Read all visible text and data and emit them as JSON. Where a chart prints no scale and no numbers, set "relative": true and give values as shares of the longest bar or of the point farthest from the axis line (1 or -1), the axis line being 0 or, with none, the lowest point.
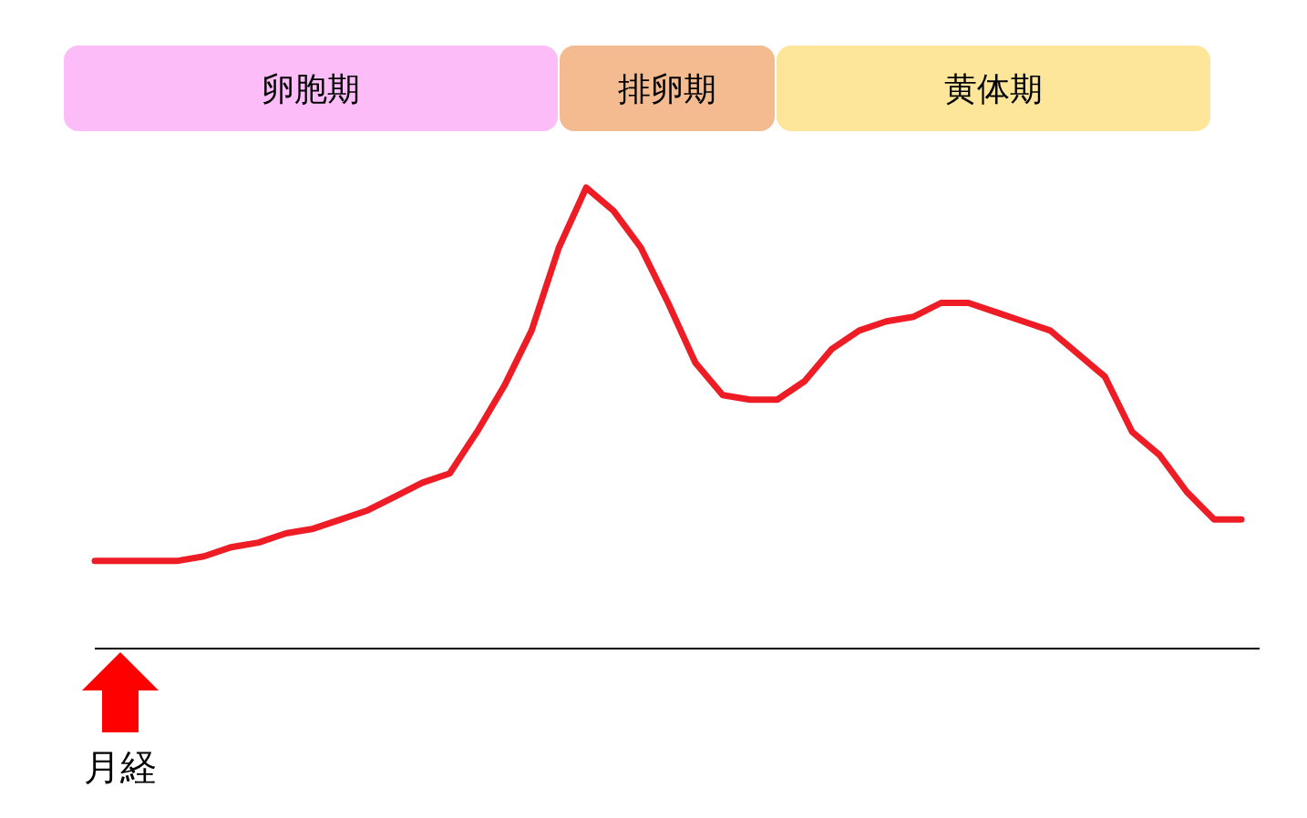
{
  "chart_data": {
    "type": "line",
    "relative": true,
    "categories": [
      null,
      null,
      null,
      null,
      null,
      null,
      null,
      null,
      null,
      null,
      null,
      null,
      null,
      null,
      null,
      null,
      null,
      null,
      null,
      null,
      null,
      null,
      null,
      null,
      null,
      null,
      null,
      null,
      null,
      null,
      null,
      null,
      null,
      null,
      null,
      null,
      null,
      null,
      null,
      null,
      null,
      null,
      null
    ],
    "series": [
      {
        "color": "#ee1c25",
        "values": [
          0.19,
          0.19,
          0.19,
          0.19,
          0.2,
          0.22,
          0.23,
          0.25,
          0.26,
          0.28,
          0.3,
          0.33,
          0.36,
          0.38,
          0.47,
          0.57,
          0.69,
          0.87,
          1,
          0.95,
          0.87,
          0.75,
          0.62,
          0.55,
          0.54,
          0.54,
          0.58,
          0.65,
          0.69,
          0.71,
          0.72,
          0.75,
          0.75,
          0.73,
          0.71,
          0.69,
          0.64,
          0.59,
          0.47,
          0.42,
          0.34,
          0.28,
          0.28
        ]
      }
    ],
    "annotations": [
      "卵胞期",
      "排卵期",
      "黄体期",
      "月経"
    ]
  }
}
